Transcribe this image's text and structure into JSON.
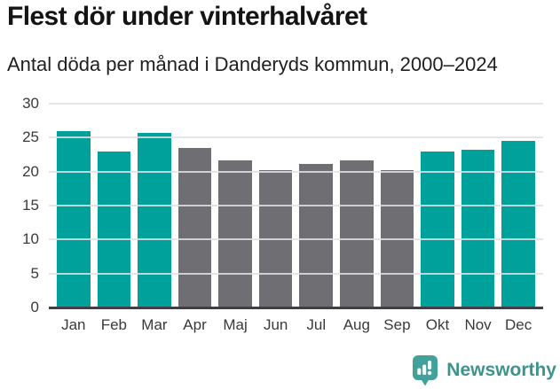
{
  "header": {
    "title": "Flest dör under vinterhalvåret",
    "subtitle": "Antal döda per månad i Danderyds kommun, 2000–2024"
  },
  "chart_data": {
    "type": "bar",
    "title": "Flest dör under vinterhalvåret",
    "subtitle": "Antal döda per månad i Danderyds kommun, 2000–2024",
    "categories": [
      "Jan",
      "Feb",
      "Mar",
      "Apr",
      "Maj",
      "Jun",
      "Jul",
      "Aug",
      "Sep",
      "Okt",
      "Nov",
      "Dec"
    ],
    "values": [
      26.0,
      23.0,
      25.7,
      23.5,
      21.6,
      20.2,
      21.1,
      21.6,
      20.2,
      23.0,
      23.2,
      24.5
    ],
    "bar_colors": [
      "#00a19a",
      "#00a19a",
      "#00a19a",
      "#6e6e73",
      "#6e6e73",
      "#6e6e73",
      "#6e6e73",
      "#6e6e73",
      "#6e6e73",
      "#00a19a",
      "#00a19a",
      "#00a19a"
    ],
    "highlight_color": "#00a19a",
    "muted_color": "#6e6e73",
    "winter_months": [
      "Jan",
      "Feb",
      "Mar",
      "Okt",
      "Nov",
      "Dec"
    ],
    "summer_months": [
      "Apr",
      "Maj",
      "Jun",
      "Jul",
      "Aug",
      "Sep"
    ],
    "xlabel": "",
    "ylabel": "",
    "ylim": [
      0,
      30
    ],
    "yticks": [
      0,
      5,
      10,
      15,
      20,
      25,
      30
    ],
    "grid": true,
    "legend_position": "none"
  },
  "footer": {
    "brand_label": "Newsworthy",
    "brand_text_color": "#3c948d",
    "logo_icon": "bar-chart-speech-bubble-icon",
    "logo_icon_color": "#42a29b"
  }
}
